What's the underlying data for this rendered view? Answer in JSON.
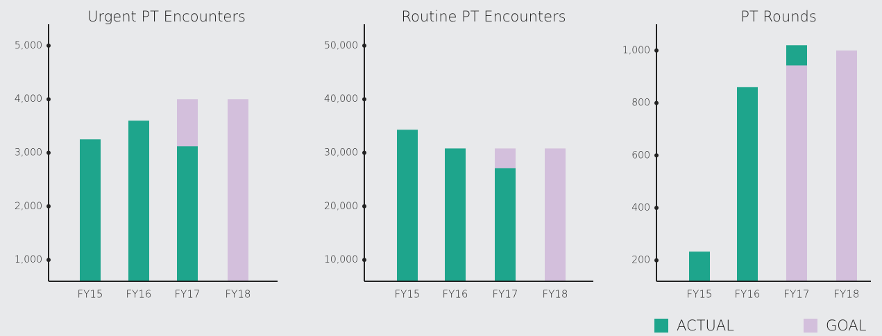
{
  "chart_data": [
    {
      "type": "bar",
      "title": "Urgent PT Encounters",
      "categories": [
        "FY15",
        "FY16",
        "FY17",
        "FY18"
      ],
      "series": [
        {
          "name": "ACTUAL",
          "color": "#1ea58c",
          "values": [
            3250,
            3600,
            3120,
            null
          ]
        },
        {
          "name": "GOAL",
          "color": "#d3bfdc",
          "values": [
            null,
            null,
            4000,
            4000
          ]
        }
      ],
      "ylim": [
        600,
        5400
      ],
      "yticks": [
        {
          "value": 1000,
          "label": "1,000"
        },
        {
          "value": 2000,
          "label": "2,000"
        },
        {
          "value": 3000,
          "label": "3,000"
        },
        {
          "value": 4000,
          "label": "4,000"
        },
        {
          "value": 5000,
          "label": "5,000"
        }
      ]
    },
    {
      "type": "bar",
      "title": "Routine PT Encounters",
      "categories": [
        "FY15",
        "FY16",
        "FY17",
        "FY18"
      ],
      "series": [
        {
          "name": "ACTUAL",
          "color": "#1ea58c",
          "values": [
            34300,
            30800,
            27100,
            null
          ]
        },
        {
          "name": "GOAL",
          "color": "#d3bfdc",
          "values": [
            null,
            null,
            30800,
            30800
          ]
        }
      ],
      "ylim": [
        6000,
        54000
      ],
      "yticks": [
        {
          "value": 10000,
          "label": "10,000"
        },
        {
          "value": 20000,
          "label": "20,000"
        },
        {
          "value": 30000,
          "label": "30,000"
        },
        {
          "value": 40000,
          "label": "40,000"
        },
        {
          "value": 50000,
          "label": "50,000"
        }
      ]
    },
    {
      "type": "bar",
      "title": "PT Rounds",
      "categories": [
        "FY15",
        "FY16",
        "FY17",
        "FY18"
      ],
      "series": [
        {
          "name": "ACTUAL",
          "color": "#1ea58c",
          "values": [
            233,
            860,
            1020,
            null
          ]
        },
        {
          "name": "GOAL",
          "color": "#d3bfdc",
          "values": [
            null,
            null,
            943,
            1000
          ]
        }
      ],
      "ylim": [
        120,
        1100
      ],
      "yticks": [
        200,
        400,
        600,
        800,
        {
          "value": 1000,
          "label": "1,000"
        }
      ]
    }
  ]
}
